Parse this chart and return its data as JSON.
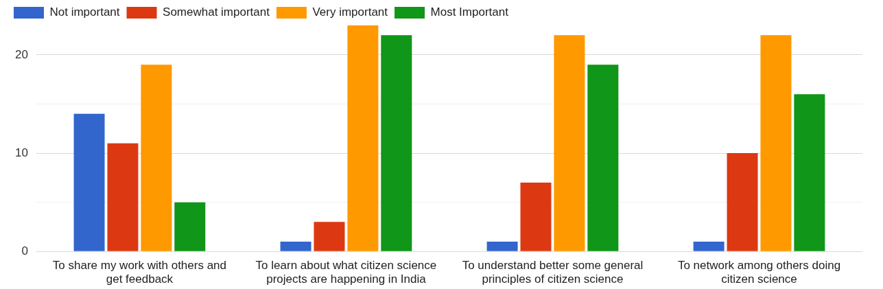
{
  "chart_data": {
    "type": "bar",
    "categories": [
      "To share my work with others and get feedback",
      "To learn about what citizen science projects are happening in India",
      "To understand better some general principles of citizen science",
      "To network among others doing citizen science"
    ],
    "series": [
      {
        "name": "Not important",
        "color": "#3366cc",
        "values": [
          14,
          1,
          1,
          1
        ]
      },
      {
        "name": "Somewhat important",
        "color": "#dc3912",
        "values": [
          11,
          3,
          7,
          10
        ]
      },
      {
        "name": "Very important",
        "color": "#ff9900",
        "values": [
          19,
          23,
          22,
          22
        ]
      },
      {
        "name": "Most Important",
        "color": "#109618",
        "values": [
          5,
          22,
          19,
          16
        ]
      }
    ],
    "ylim": [
      0,
      23
    ],
    "yticks": [
      0,
      {
        "value": 5,
        "label": null
      },
      10,
      {
        "value": 15,
        "label": null
      },
      20
    ],
    "grid": "y",
    "legend": "top left"
  }
}
